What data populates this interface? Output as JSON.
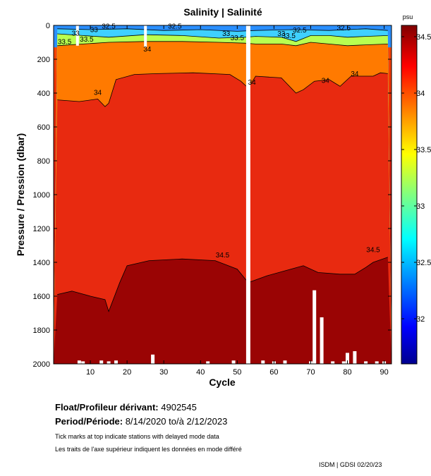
{
  "title": "Salinity | Salinité",
  "chart_data": {
    "type": "heatmap",
    "title": "Salinity | Salinité",
    "xlabel": "Cycle",
    "ylabel": "Pressure / Pression (dbar)",
    "xlim": [
      0,
      92
    ],
    "ylim": [
      2000,
      0
    ],
    "x_ticks": [
      10,
      20,
      30,
      40,
      50,
      60,
      70,
      80,
      90
    ],
    "y_ticks": [
      0,
      200,
      400,
      600,
      800,
      1000,
      1200,
      1400,
      1600,
      1800,
      2000
    ],
    "colorbar": {
      "unit": "psu",
      "range": [
        31.6,
        34.6
      ],
      "ticks": [
        32,
        32.5,
        33,
        33.5,
        34,
        34.5
      ],
      "tick_labels": [
        "32",
        "32.5",
        "33",
        "33.5",
        "34",
        "34.5"
      ],
      "colormap": "jet"
    },
    "contours": [
      {
        "level": 34.5,
        "label": "34.5",
        "points": [
          [
            1,
            1590
          ],
          [
            5,
            1570
          ],
          [
            10,
            1600
          ],
          [
            14,
            1620
          ],
          [
            15,
            1690
          ],
          [
            18,
            1520
          ],
          [
            20,
            1420
          ],
          [
            26,
            1390
          ],
          [
            35,
            1380
          ],
          [
            44,
            1390
          ],
          [
            50,
            1440
          ],
          [
            53,
            1520
          ],
          [
            58,
            1480
          ],
          [
            63,
            1450
          ],
          [
            68,
            1420
          ],
          [
            72,
            1460
          ],
          [
            78,
            1470
          ],
          [
            82,
            1470
          ],
          [
            85,
            1430
          ],
          [
            87,
            1400
          ],
          [
            91,
            1370
          ]
        ]
      },
      {
        "level": 34.0,
        "label": "34",
        "points": [
          [
            1,
            440
          ],
          [
            7,
            450
          ],
          [
            12,
            435
          ],
          [
            14,
            480
          ],
          [
            15,
            460
          ],
          [
            17,
            320
          ],
          [
            22,
            290
          ],
          [
            28,
            285
          ],
          [
            38,
            280
          ],
          [
            48,
            290
          ],
          [
            51,
            330
          ],
          [
            53,
            370
          ],
          [
            55,
            300
          ],
          [
            62,
            310
          ],
          [
            66,
            400
          ],
          [
            68,
            380
          ],
          [
            71,
            330
          ],
          [
            75,
            320
          ],
          [
            78,
            360
          ],
          [
            81,
            300
          ],
          [
            87,
            300
          ],
          [
            89,
            280
          ],
          [
            91,
            285
          ]
        ]
      },
      {
        "level": 33.5,
        "label": "33.5",
        "points": [
          [
            1,
            120
          ],
          [
            8,
            110
          ],
          [
            15,
            100
          ],
          [
            25,
            95
          ],
          [
            35,
            95
          ],
          [
            45,
            100
          ],
          [
            52,
            105
          ],
          [
            55,
            110
          ],
          [
            62,
            110
          ],
          [
            66,
            120
          ],
          [
            70,
            100
          ],
          [
            75,
            110
          ],
          [
            80,
            120
          ],
          [
            85,
            115
          ],
          [
            91,
            110
          ]
        ]
      },
      {
        "level": 33.0,
        "label": "33",
        "points": [
          [
            1,
            50
          ],
          [
            8,
            60
          ],
          [
            15,
            70
          ],
          [
            25,
            55
          ],
          [
            35,
            60
          ],
          [
            45,
            75
          ],
          [
            52,
            70
          ],
          [
            55,
            65
          ],
          [
            62,
            70
          ],
          [
            66,
            95
          ],
          [
            70,
            60
          ],
          [
            75,
            60
          ],
          [
            80,
            70
          ],
          [
            85,
            65
          ],
          [
            91,
            60
          ]
        ]
      },
      {
        "level": 32.5,
        "label": "32.5",
        "points": [
          [
            1,
            20
          ],
          [
            10,
            25
          ],
          [
            20,
            20
          ],
          [
            30,
            30
          ],
          [
            40,
            25
          ],
          [
            50,
            35
          ],
          [
            55,
            30
          ],
          [
            65,
            25
          ],
          [
            75,
            30
          ],
          [
            85,
            20
          ],
          [
            91,
            30
          ]
        ]
      }
    ],
    "contour_labels": [
      {
        "text": "33",
        "cycle": 6,
        "pressure": 60
      },
      {
        "text": "33.5",
        "cycle": 3,
        "pressure": 110
      },
      {
        "text": "33.5",
        "cycle": 9,
        "pressure": 95
      },
      {
        "text": "33",
        "cycle": 11,
        "pressure": 40
      },
      {
        "text": "32.5",
        "cycle": 15,
        "pressure": 18
      },
      {
        "text": "34",
        "cycle": 25.5,
        "pressure": 155
      },
      {
        "text": "32.5",
        "cycle": 33,
        "pressure": 18
      },
      {
        "text": "33",
        "cycle": 47,
        "pressure": 62
      },
      {
        "text": "33.5",
        "cycle": 50,
        "pressure": 88
      },
      {
        "text": "34",
        "cycle": 12,
        "pressure": 410
      },
      {
        "text": "34",
        "cycle": 54,
        "pressure": 350
      },
      {
        "text": "33",
        "cycle": 62,
        "pressure": 62
      },
      {
        "text": "32.5",
        "cycle": 67,
        "pressure": 42
      },
      {
        "text": "33.5",
        "cycle": 64,
        "pressure": 74
      },
      {
        "text": "34",
        "cycle": 74,
        "pressure": 340
      },
      {
        "text": "34",
        "cycle": 82,
        "pressure": 300
      },
      {
        "text": "32.5",
        "cycle": 79,
        "pressure": 30
      },
      {
        "text": "34.5",
        "cycle": 46,
        "pressure": 1370
      },
      {
        "text": "34.5",
        "cycle": 87,
        "pressure": 1340
      }
    ],
    "no_data_columns": [
      {
        "cycle": 6.5,
        "p_min": 0,
        "p_max": 120
      },
      {
        "cycle": 25,
        "p_min": 0,
        "p_max": 130
      },
      {
        "cycle": 53,
        "p_min": 0,
        "p_max": 2000
      }
    ],
    "bottom_gaps": [
      {
        "cycle": 7,
        "p_top": 1980
      },
      {
        "cycle": 8,
        "p_top": 1985
      },
      {
        "cycle": 13,
        "p_top": 1980
      },
      {
        "cycle": 15,
        "p_top": 1985
      },
      {
        "cycle": 17,
        "p_top": 1980
      },
      {
        "cycle": 27,
        "p_top": 1945
      },
      {
        "cycle": 42,
        "p_top": 1985
      },
      {
        "cycle": 49,
        "p_top": 1980
      },
      {
        "cycle": 57,
        "p_top": 1980
      },
      {
        "cycle": 60,
        "p_top": 1985
      },
      {
        "cycle": 63,
        "p_top": 1980
      },
      {
        "cycle": 70,
        "p_top": 1985
      },
      {
        "cycle": 71,
        "p_top": 1565
      },
      {
        "cycle": 73,
        "p_top": 1725
      },
      {
        "cycle": 76,
        "p_top": 1985
      },
      {
        "cycle": 79,
        "p_top": 1985
      },
      {
        "cycle": 80,
        "p_top": 1935
      },
      {
        "cycle": 82,
        "p_top": 1925
      },
      {
        "cycle": 85,
        "p_top": 1985
      },
      {
        "cycle": 88,
        "p_top": 1985
      },
      {
        "cycle": 90,
        "p_top": 1985
      }
    ]
  },
  "info": {
    "float_label": "Float/Profileur dérivant:",
    "float_id": "4902545",
    "period_label": "Period/Période:",
    "period_start": "8/14/2020",
    "period_to": "to/à",
    "period_end": "2/12/2023",
    "note_en": "Tick marks at top indicate stations with delayed mode data",
    "note_fr": "Les traits de l'axe supérieur indiquent les données en mode différé",
    "credit": "ISDM | GDSI  02/20/23"
  }
}
